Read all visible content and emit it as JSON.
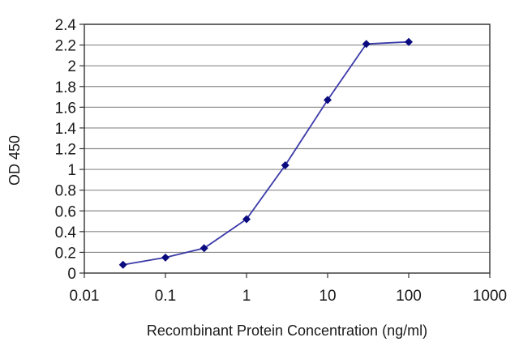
{
  "chart_data": {
    "type": "line",
    "title": "",
    "xlabel": "Recombinant Protein Concentration (ng/ml)",
    "ylabel": "OD 450",
    "x_scale": "log",
    "xlim": [
      0.01,
      1000
    ],
    "ylim": [
      0,
      2.4
    ],
    "x_ticks": [
      "0.01",
      "0.1",
      "1",
      "10",
      "100",
      "1000"
    ],
    "y_ticks": [
      "0",
      "0.2",
      "0.4",
      "0.6",
      "0.8",
      "1",
      "1.2",
      "1.4",
      "1.6",
      "1.8",
      "2",
      "2.2",
      "2.4"
    ],
    "grid": "horizontal",
    "legend": "none",
    "series": [
      {
        "color": "#3a3aa8",
        "marker_color": "#0b0b80",
        "x": [
          0.03,
          0.1,
          0.3,
          1,
          3,
          10,
          30,
          100
        ],
        "y": [
          0.08,
          0.15,
          0.24,
          0.52,
          1.04,
          1.67,
          2.21,
          2.23
        ]
      }
    ]
  }
}
